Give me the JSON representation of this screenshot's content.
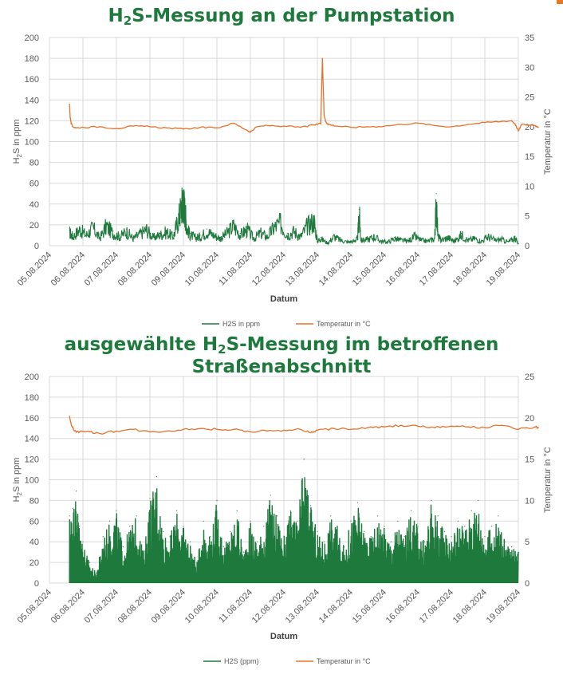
{
  "colors": {
    "h2s": "#1e7a3c",
    "temp": "#e8712a",
    "grid": "#d9d9d9",
    "title": "#1e7a3c"
  },
  "chart_data": [
    {
      "type": "line",
      "title_main": "H",
      "title_sub": "2",
      "title_rest": "S-Messung an der Pumpstation",
      "xlabel": "Datum",
      "ylabel_left_main": "H",
      "ylabel_left_sub": "2",
      "ylabel_left_rest": "S in ppm",
      "ylabel_right": "Temperatur in °C",
      "ylim_left": [
        0,
        200
      ],
      "ylim_right": [
        0,
        35
      ],
      "yticks_left": [
        "0",
        "20",
        "40",
        "60",
        "80",
        "100",
        "120",
        "140",
        "160",
        "180",
        "200"
      ],
      "yticks_right": [
        "0",
        "5",
        "10",
        "15",
        "20",
        "25",
        "30",
        "35"
      ],
      "x_dates": [
        "05.08.2024",
        "06.08.2024",
        "07.08.2024",
        "08.08.2024",
        "09.08.2024",
        "10.08.2024",
        "11.08.2024",
        "12.08.2024",
        "13.08.2024",
        "14.08.2024",
        "15.08.2024",
        "16.08.2024",
        "17.08.2024",
        "18.08.2024",
        "19.08.2024"
      ],
      "grid": true,
      "legend_position": "bottom",
      "series": [
        {
          "name": "H2S in ppm",
          "axis": "left",
          "x": [
            0.6,
            0.7,
            0.9,
            1.1,
            1.3,
            1.5,
            1.7,
            1.9,
            2.1,
            2.3,
            2.5,
            2.7,
            2.9,
            3.1,
            3.3,
            3.5,
            3.7,
            3.85,
            3.95,
            4.0,
            4.05,
            4.1,
            4.2,
            4.35,
            4.5,
            4.7,
            4.9,
            5.1,
            5.3,
            5.5,
            5.7,
            5.9,
            6.1,
            6.3,
            6.5,
            6.7,
            6.9,
            7.1,
            7.3,
            7.5,
            7.7,
            7.9,
            8.0,
            8.1,
            8.3,
            8.5,
            8.7,
            8.9,
            9.1,
            9.2,
            9.25,
            9.3,
            9.5,
            9.7,
            9.9,
            10.1,
            10.3,
            10.5,
            10.7,
            10.9,
            11.1,
            11.3,
            11.5,
            11.55,
            11.6,
            11.7,
            11.9,
            12.1,
            12.3,
            12.5,
            12.7,
            12.9,
            13.1,
            13.3,
            13.5,
            13.7,
            13.9,
            14.0
          ],
          "y": [
            15,
            10,
            18,
            12,
            20,
            8,
            22,
            14,
            10,
            16,
            8,
            13,
            18,
            9,
            12,
            15,
            10,
            30,
            45,
            50,
            38,
            20,
            12,
            9,
            10,
            16,
            12,
            8,
            14,
            22,
            12,
            18,
            8,
            14,
            10,
            20,
            25,
            12,
            16,
            10,
            22,
            28,
            5,
            8,
            3,
            10,
            6,
            4,
            5,
            8,
            35,
            6,
            7,
            10,
            5,
            4,
            8,
            6,
            5,
            10,
            6,
            5,
            8,
            50,
            10,
            6,
            9,
            5,
            12,
            6,
            8,
            5,
            10,
            6,
            7,
            4,
            9,
            2
          ]
        },
        {
          "name": "Temperatur in °C",
          "axis": "right",
          "x": [
            0.6,
            0.62,
            0.65,
            0.7,
            0.8,
            1.0,
            1.5,
            2.0,
            2.5,
            3.0,
            3.5,
            4.0,
            4.5,
            5.0,
            5.5,
            5.9,
            6.0,
            6.2,
            6.5,
            7.0,
            7.5,
            7.9,
            8.1,
            8.15,
            8.2,
            8.25,
            8.3,
            8.4,
            8.6,
            9.0,
            9.5,
            10.0,
            10.5,
            11.0,
            11.5,
            12.0,
            12.5,
            13.0,
            13.5,
            13.8,
            13.9,
            14.0,
            14.1,
            14.5,
            14.6
          ],
          "y": [
            23.8,
            21.5,
            20.5,
            20.0,
            19.8,
            19.9,
            20.0,
            19.7,
            20.1,
            20.0,
            19.8,
            19.6,
            19.9,
            19.8,
            20.6,
            19.4,
            19.1,
            20.0,
            20.2,
            20.1,
            19.9,
            20.3,
            20.5,
            31.5,
            22,
            20.8,
            20.5,
            20.3,
            20.1,
            19.9,
            20.0,
            20.1,
            20.4,
            20.6,
            20.2,
            20.0,
            20.4,
            20.7,
            20.9,
            21.0,
            20.5,
            19.3,
            20.4,
            20.2,
            19.9
          ]
        }
      ],
      "legend_h2s": "H2S in ppm",
      "legend_temp": "Temperatur in °C"
    },
    {
      "type": "line",
      "title_line1_pre": "ausgewählte H",
      "title_line1_sub": "2",
      "title_line1_post": "S-Messung im betroffenen",
      "title_line2": "Straßenabschnitt",
      "xlabel": "Datum",
      "ylabel_left_main": "H",
      "ylabel_left_sub": "2",
      "ylabel_left_rest": "S in ppm",
      "ylabel_right": "Temperatur in °C",
      "ylim_left": [
        0,
        200
      ],
      "ylim_right": [
        0,
        25
      ],
      "yticks_left": [
        "0",
        "20",
        "40",
        "60",
        "80",
        "100",
        "120",
        "140",
        "160",
        "180",
        "200"
      ],
      "yticks_right": [
        "0",
        "5",
        "10",
        "15",
        "20",
        "25"
      ],
      "x_dates": [
        "05.08.2024",
        "06.08.2024",
        "07.08.2024",
        "08.08.2024",
        "09.08.2024",
        "10.08.2024",
        "11.08.2024",
        "12.08.2024",
        "13.08.2024",
        "14.08.2024",
        "15.08.2024",
        "16.08.2024",
        "17.08.2024",
        "18.08.2024",
        "19.08.2024"
      ],
      "grid": true,
      "legend_position": "bottom",
      "series": [
        {
          "name": "H2S (ppm)",
          "axis": "left",
          "x": [
            0.6,
            0.7,
            0.8,
            0.9,
            1.0,
            1.2,
            1.4,
            1.6,
            1.8,
            2.0,
            2.2,
            2.4,
            2.6,
            2.8,
            3.0,
            3.2,
            3.4,
            3.6,
            3.8,
            4.0,
            4.2,
            4.4,
            4.6,
            4.8,
            5.0,
            5.2,
            5.4,
            5.6,
            5.8,
            6.0,
            6.2,
            6.4,
            6.6,
            6.8,
            7.0,
            7.2,
            7.4,
            7.6,
            7.8,
            8.0,
            8.2,
            8.4,
            8.6,
            8.8,
            9.0,
            9.2,
            9.4,
            9.6,
            9.8,
            10.0,
            10.2,
            10.4,
            10.6,
            10.8,
            11.0,
            11.2,
            11.4,
            11.6,
            11.8,
            12.0,
            12.2,
            12.4,
            12.6,
            12.8,
            13.0,
            13.2,
            13.4,
            13.6,
            13.8,
            14.0
          ],
          "y": [
            65,
            72,
            89,
            55,
            40,
            20,
            10,
            45,
            60,
            70,
            35,
            55,
            65,
            30,
            82,
            103,
            50,
            45,
            70,
            55,
            40,
            20,
            60,
            45,
            80,
            35,
            50,
            70,
            30,
            60,
            40,
            55,
            85,
            65,
            45,
            70,
            60,
            120,
            75,
            50,
            40,
            65,
            55,
            35,
            60,
            78,
            50,
            45,
            65,
            55,
            40,
            60,
            45,
            70,
            55,
            40,
            80,
            65,
            50,
            45,
            60,
            55,
            70,
            80,
            45,
            55,
            65,
            40,
            35,
            30
          ]
        },
        {
          "name": "Temperatur in °C",
          "axis": "right",
          "x": [
            0.6,
            0.65,
            0.75,
            0.9,
            1.2,
            1.5,
            2.0,
            2.5,
            3.0,
            3.5,
            4.0,
            4.5,
            5.0,
            5.5,
            6.0,
            6.5,
            7.0,
            7.5,
            7.8,
            8.0,
            8.5,
            9.0,
            9.5,
            10.0,
            10.5,
            11.0,
            11.5,
            12.0,
            12.5,
            13.0,
            13.5,
            14.0,
            14.5,
            14.6
          ],
          "y": [
            20.2,
            19.2,
            18.4,
            18.3,
            18.3,
            18.1,
            18.4,
            18.6,
            18.3,
            18.4,
            18.6,
            18.7,
            18.6,
            18.6,
            18.3,
            18.4,
            18.5,
            18.6,
            18.2,
            18.5,
            18.7,
            18.6,
            18.8,
            18.9,
            19.1,
            19.0,
            18.8,
            19.0,
            18.9,
            18.8,
            19.1,
            18.6,
            18.9,
            18.8
          ]
        }
      ],
      "legend_h2s": "H2S (ppm)",
      "legend_temp": "Temperatur in °C"
    }
  ]
}
